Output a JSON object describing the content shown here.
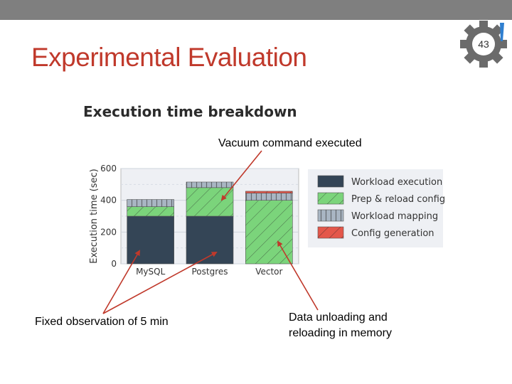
{
  "slide": {
    "title": "Experimental Evaluation",
    "page_number": "43",
    "colors": {
      "title": "#c0392b",
      "topbar": "#7f7f7f",
      "gear": "#6b6b6b"
    }
  },
  "annotations": {
    "top": "Vacuum command executed",
    "left": "Fixed observation of 5 min",
    "right_line1": "Data unloading and",
    "right_line2": "reloading in memory"
  },
  "chart_data": {
    "type": "bar",
    "stacked": true,
    "title": "Execution time breakdown",
    "ylabel": "Execution time (sec)",
    "xlabel": "",
    "ylim": [
      0,
      600
    ],
    "yticks": [
      0,
      200,
      400,
      600
    ],
    "grid": true,
    "legend_position": "right",
    "categories": [
      "MySQL",
      "Postgres",
      "Vector"
    ],
    "series": [
      {
        "name": "Workload execution",
        "values": [
          300,
          300,
          0
        ],
        "color": "#344556",
        "pattern": "solid"
      },
      {
        "name": "Prep & reload config",
        "values": [
          60,
          180,
          400
        ],
        "color": "#7bd47b",
        "pattern": "diagonal"
      },
      {
        "name": "Workload mapping",
        "values": [
          45,
          35,
          45
        ],
        "color": "#a9b6c3",
        "pattern": "vertical"
      },
      {
        "name": "Config generation",
        "values": [
          0,
          0,
          12
        ],
        "color": "#e4574a",
        "pattern": "diagonal"
      }
    ]
  }
}
